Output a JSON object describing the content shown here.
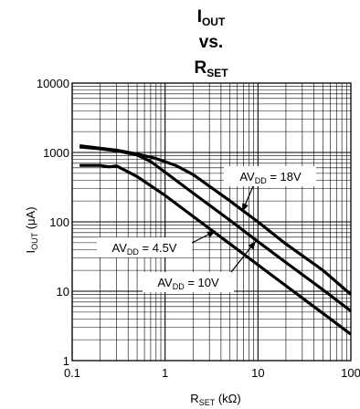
{
  "chart_data": {
    "type": "line",
    "title": {
      "line1_main": "I",
      "line1_sub": "OUT",
      "line2": "vs.",
      "line3_main": "R",
      "line3_sub": "SET"
    },
    "xlabel": {
      "main": "R",
      "sub": "SET",
      "suffix": " (kΩ)"
    },
    "ylabel": {
      "main": "I",
      "sub": "OUT",
      "suffix": " (μA)"
    },
    "x_scale": "log",
    "y_scale": "log",
    "xlim": [
      0.1,
      100
    ],
    "ylim": [
      1,
      10000
    ],
    "x_ticks": [
      {
        "value": 0.1,
        "label": "0.1"
      },
      {
        "value": 1,
        "label": "1"
      },
      {
        "value": 10,
        "label": "10"
      },
      {
        "value": 100,
        "label": "100"
      }
    ],
    "y_ticks": [
      {
        "value": 1,
        "label": "1"
      },
      {
        "value": 10,
        "label": "10"
      },
      {
        "value": 100,
        "label": "100"
      },
      {
        "value": 1000,
        "label": "1000"
      },
      {
        "value": 10000,
        "label": "10000"
      }
    ],
    "grid": true,
    "series": [
      {
        "annotation": {
          "main": "AV",
          "sub": "DD",
          "suffix": " = 18V"
        },
        "x": [
          0.12,
          0.2,
          0.3,
          0.5,
          0.8,
          1.3,
          2,
          5,
          10,
          20,
          50,
          100
        ],
        "y": [
          1250,
          1150,
          1080,
          950,
          820,
          650,
          480,
          200,
          100,
          48,
          20,
          9
        ]
      },
      {
        "annotation": {
          "main": "AV",
          "sub": "DD",
          "suffix": " = 10V"
        },
        "x": [
          0.12,
          0.2,
          0.3,
          0.5,
          0.7,
          1,
          2,
          5,
          10,
          20,
          50,
          100
        ],
        "y": [
          1200,
          1130,
          1060,
          920,
          740,
          520,
          260,
          105,
          52,
          26,
          10.5,
          5.2
        ]
      },
      {
        "annotation": {
          "main": "AV",
          "sub": "DD",
          "suffix": " = 4.5V"
        },
        "x": [
          0.12,
          0.2,
          0.25,
          0.3,
          0.5,
          1,
          2,
          5,
          10,
          20,
          50,
          100
        ],
        "y": [
          650,
          650,
          620,
          640,
          450,
          240,
          120,
          48,
          24,
          12,
          4.8,
          2.4
        ]
      }
    ],
    "annotations": [
      {
        "series": 0,
        "main": "AV",
        "sub": "DD",
        "suffix": " = 18V"
      },
      {
        "series": 1,
        "main": "AV",
        "sub": "DD",
        "suffix": " = 10V"
      },
      {
        "series": 2,
        "main": "AV",
        "sub": "DD",
        "suffix": " = 4.5V"
      }
    ]
  }
}
